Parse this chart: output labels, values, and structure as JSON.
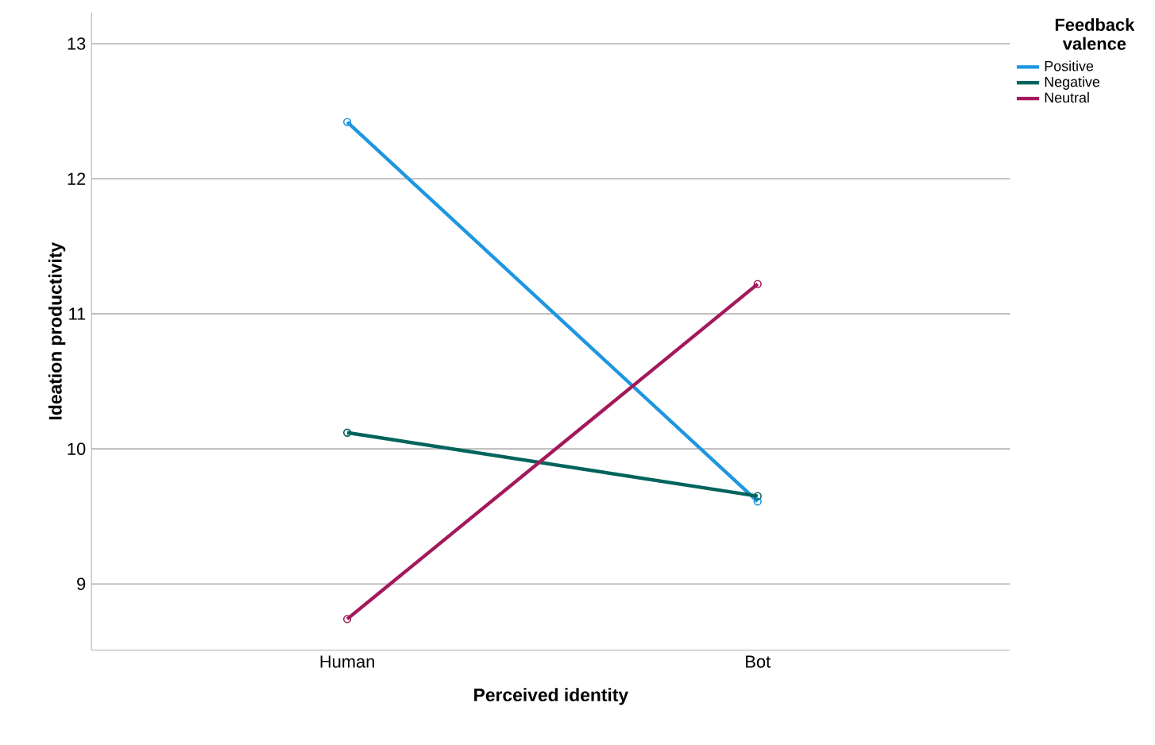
{
  "chart_data": {
    "type": "line",
    "xlabel": "Perceived identity",
    "ylabel": "Ideation productivity",
    "legend_title": "Feedback valence",
    "categories": [
      "Human",
      "Bot"
    ],
    "series": [
      {
        "name": "Positive",
        "color": "#1e96e0",
        "values": [
          12.42,
          9.61
        ]
      },
      {
        "name": "Negative",
        "color": "#00645c",
        "values": [
          10.12,
          9.65
        ]
      },
      {
        "name": "Neutral",
        "color": "#a3195b",
        "values": [
          8.74,
          11.22
        ]
      }
    ],
    "ylim": [
      8.51,
      13.23
    ],
    "yticks": [
      9,
      10,
      11,
      12,
      13
    ],
    "grid": "y",
    "legend": "top right",
    "marker": "circle",
    "line_style": "solid"
  }
}
